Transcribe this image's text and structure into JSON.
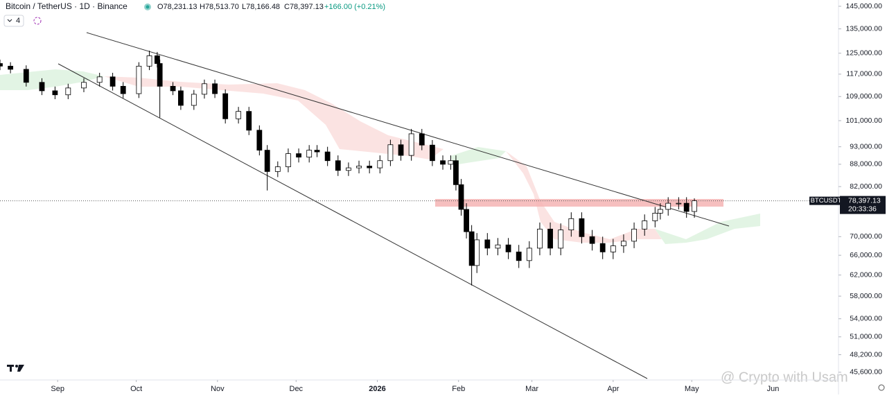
{
  "header": {
    "symbol": "Bitcoin / TetherUS · 1D · Binance",
    "open": "O78,231.13",
    "high": "H78,513.70",
    "low": "L78,166.48",
    "close": "C78,397.13",
    "change": "+166.00 (+0.21%)",
    "indicator_count": "4"
  },
  "watermark": "@ Crypto with Usam",
  "chart_data": {
    "type": "candlestick",
    "log_scale": true,
    "up_color": "#ffffff",
    "down_color": "#000000",
    "x": [
      -22,
      -18,
      -12,
      -6,
      -1,
      4,
      10,
      16,
      21,
      25,
      31,
      35,
      38,
      39,
      44,
      47,
      52,
      56,
      60,
      64,
      69,
      73,
      77,
      80,
      84,
      88,
      92,
      96,
      99,
      103,
      107,
      111,
      115,
      119,
      123,
      127,
      131,
      135,
      139,
      143,
      147,
      150,
      152,
      154,
      156,
      158,
      160,
      164,
      168,
      172,
      176,
      180,
      184,
      188,
      192,
      196,
      200,
      204,
      208,
      212,
      216,
      220,
      224,
      228,
      230,
      233,
      237,
      240,
      243
    ],
    "open": [
      121000,
      120000,
      118800,
      114000,
      111000,
      109600,
      112000,
      114000,
      116000,
      112600,
      110000,
      120000,
      124000,
      121000,
      112600,
      111000,
      106000,
      109800,
      113500,
      110000,
      101600,
      104000,
      98000,
      92000,
      86000,
      87300,
      91000,
      90000,
      92000,
      91500,
      89000,
      86300,
      87000,
      87500,
      87000,
      89000,
      93600,
      90500,
      96900,
      93500,
      89000,
      88000,
      89000,
      82500,
      76300,
      71100,
      63900,
      69300,
      67500,
      68200,
      66700,
      64900,
      67500,
      71700,
      67500,
      71500,
      74100,
      70000,
      68500,
      66700,
      68000,
      69000,
      71700,
      73600,
      75400,
      76300,
      77800,
      77800,
      75800
    ],
    "high": [
      122500,
      121500,
      120300,
      115500,
      112500,
      113500,
      115500,
      117500,
      117500,
      114100,
      121500,
      126000,
      125500,
      122500,
      114100,
      112500,
      111300,
      115000,
      115000,
      111500,
      105500,
      105500,
      99500,
      93500,
      88800,
      92500,
      92500,
      93500,
      93500,
      93000,
      90500,
      88500,
      89000,
      89000,
      90500,
      95100,
      95100,
      98400,
      98400,
      95000,
      90500,
      90500,
      90500,
      84000,
      77800,
      72600,
      70800,
      70800,
      69700,
      69700,
      68200,
      69000,
      73200,
      73200,
      73000,
      75600,
      75600,
      71500,
      70000,
      69500,
      70500,
      73200,
      75100,
      76900,
      77800,
      79300,
      79300,
      79300,
      79000
    ],
    "low": [
      118500,
      117300,
      112500,
      109500,
      108100,
      108100,
      110500,
      112500,
      111100,
      108500,
      108500,
      118500,
      119500,
      102000,
      109500,
      104500,
      104500,
      108300,
      108500,
      100100,
      100100,
      96500,
      90500,
      81000,
      84500,
      85800,
      88500,
      88500,
      90000,
      87500,
      84800,
      84800,
      85500,
      85500,
      85500,
      87500,
      89000,
      89000,
      92000,
      87500,
      86500,
      86500,
      81000,
      74800,
      69600,
      60000,
      62400,
      66000,
      66000,
      65200,
      63400,
      63400,
      66000,
      66000,
      66000,
      70000,
      68500,
      67000,
      65200,
      65200,
      66500,
      67500,
      70200,
      72100,
      73900,
      74800,
      76300,
      74300,
      74300
    ],
    "close": [
      120000,
      118800,
      114000,
      111000,
      109600,
      112000,
      114000,
      116000,
      112600,
      110000,
      120000,
      124000,
      121000,
      112600,
      111000,
      106000,
      109800,
      113500,
      110000,
      101600,
      104000,
      98000,
      92000,
      86000,
      87300,
      91000,
      90000,
      92000,
      91500,
      89000,
      86300,
      87000,
      87500,
      87000,
      89000,
      93600,
      90500,
      96900,
      93500,
      89000,
      88000,
      89000,
      82500,
      76300,
      71100,
      63900,
      69300,
      67500,
      68200,
      66700,
      64900,
      67500,
      71700,
      67500,
      71500,
      74100,
      70000,
      68500,
      66700,
      68000,
      69000,
      71700,
      73600,
      75400,
      76300,
      77800,
      77800,
      75800,
      78400
    ],
    "xlim": [
      -22,
      298
    ],
    "xticks": [
      {
        "value": 0,
        "label": "Sep"
      },
      {
        "value": 30,
        "label": "Oct"
      },
      {
        "value": 61,
        "label": "Nov"
      },
      {
        "value": 91,
        "label": "Dec"
      },
      {
        "value": 122,
        "label": "2026"
      },
      {
        "value": 153,
        "label": "Feb"
      },
      {
        "value": 181,
        "label": "Mar"
      },
      {
        "value": 212,
        "label": "Apr"
      },
      {
        "value": 242,
        "label": "May"
      },
      {
        "value": 273,
        "label": "Jun"
      }
    ],
    "ylim": [
      44500,
      147900
    ],
    "yticks": [
      {
        "value": 145000,
        "label": "145,000.00"
      },
      {
        "value": 135000,
        "label": "135,000.00"
      },
      {
        "value": 125000,
        "label": "125,000.00"
      },
      {
        "value": 117000,
        "label": "117,000.00"
      },
      {
        "value": 109000,
        "label": "109,000.00"
      },
      {
        "value": 101000,
        "label": "101,000.00"
      },
      {
        "value": 93000,
        "label": "93,000.00"
      },
      {
        "value": 88000,
        "label": "88,000.00"
      },
      {
        "value": 82000,
        "label": "82,000.00"
      },
      {
        "value": 70000,
        "label": "70,000.00"
      },
      {
        "value": 66000,
        "label": "66,000.00"
      },
      {
        "value": 62000,
        "label": "62,000.00"
      },
      {
        "value": 58000,
        "label": "58,000.00"
      },
      {
        "value": 54000,
        "label": "54,000.00"
      },
      {
        "value": 51000,
        "label": "51,000.00"
      },
      {
        "value": 48200,
        "label": "48,200.00"
      },
      {
        "value": 45600,
        "label": "45,600.00"
      }
    ],
    "last_price": {
      "value": 78397.13,
      "label": "78,397.13"
    },
    "price_tag": "BTCUSDT",
    "countdown": "20:33:36"
  }
}
